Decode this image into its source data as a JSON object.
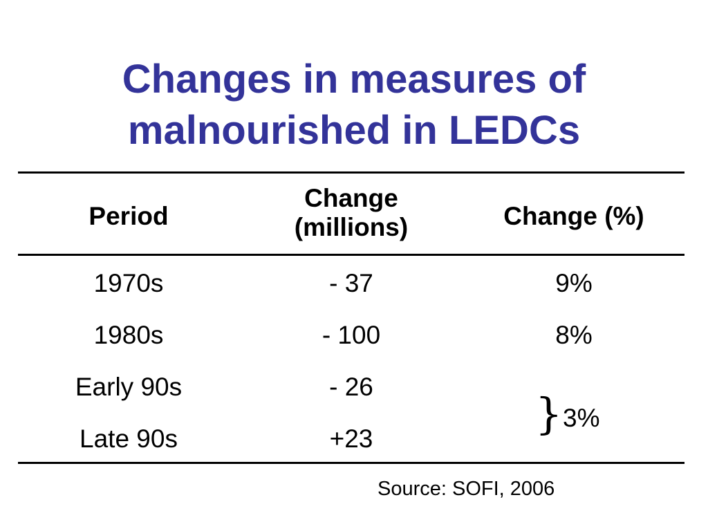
{
  "slide": {
    "title_line1": "Changes in measures of",
    "title_line2": "malnourished in LEDCs",
    "title_color": "#333399"
  },
  "table": {
    "headers": {
      "period": "Period",
      "change_millions_line1": "Change",
      "change_millions_line2": "(millions)",
      "change_percent": "Change (%)"
    },
    "rows": [
      {
        "period": "1970s",
        "change_millions": "- 37",
        "change_percent": "9%"
      },
      {
        "period": "1980s",
        "change_millions": "- 100",
        "change_percent": "8%"
      },
      {
        "period": "Early 90s",
        "change_millions": "- 26"
      },
      {
        "period": "Late 90s",
        "change_millions": "+23"
      }
    ],
    "merged_percent": {
      "brace": "}",
      "value": "3%"
    }
  },
  "source": "Source: SOFI, 2006"
}
